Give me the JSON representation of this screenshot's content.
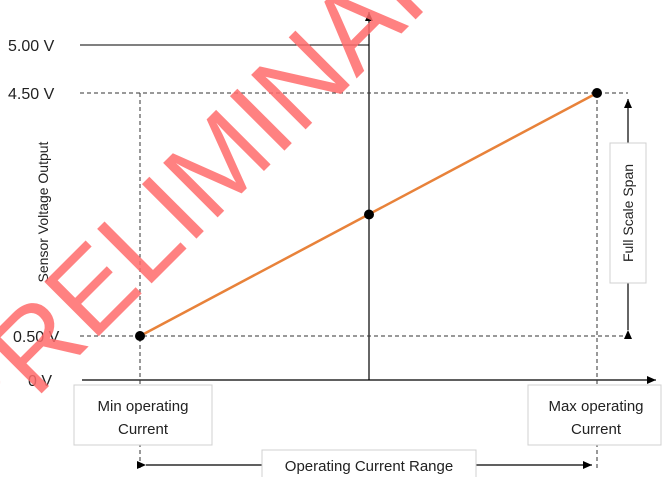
{
  "chart_data": {
    "type": "line",
    "watermark": "PRELIMINARY",
    "ylabel": "Sensor Voltage Output",
    "y_ticks": [
      {
        "value": 5.0,
        "label": "5.00 V"
      },
      {
        "value": 4.5,
        "label": "4.50 V"
      },
      {
        "value": 0.5,
        "label": "0.50 V"
      },
      {
        "value": 0.0,
        "label": "0 V"
      }
    ],
    "x_categories": [
      "Min operating Current",
      "Max operating Current"
    ],
    "annotations": {
      "min_label_lines": [
        "Min operating",
        "Current"
      ],
      "max_label_lines": [
        "Max operating",
        "Current"
      ],
      "range_label": "Operating Current Range",
      "span_label": "Full Scale Span"
    },
    "series": [
      {
        "color": "#e8823a",
        "points": [
          {
            "x": "Min operating Current",
            "y": 0.5
          },
          {
            "x": "Midpoint",
            "y": 2.5
          },
          {
            "x": "Max operating Current",
            "y": 4.5
          }
        ]
      }
    ],
    "ylim": [
      0,
      5
    ],
    "colors": {
      "line": "#e8823a",
      "watermark": "#ff6b6b",
      "axes": "#000000",
      "guides": "#333333"
    }
  }
}
